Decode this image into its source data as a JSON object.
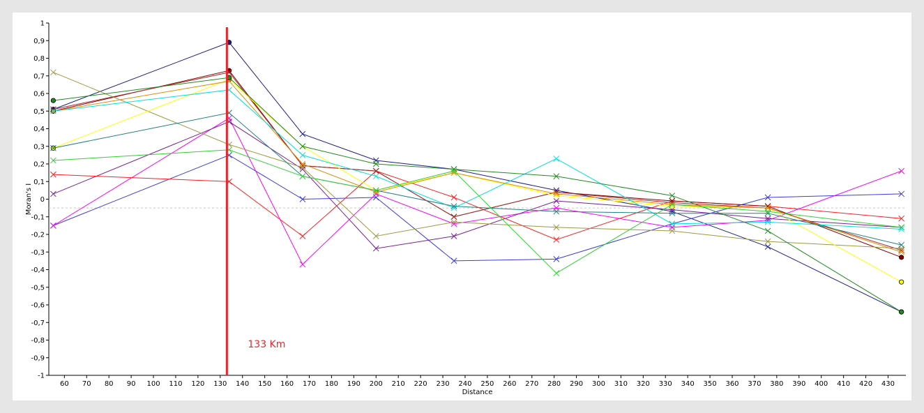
{
  "chart_data": {
    "type": "line",
    "xlabel": "Distance",
    "ylabel": "Moran's I",
    "xlim": [
      53,
      438
    ],
    "ylim": [
      -1,
      1
    ],
    "x_ticks": [
      60,
      70,
      80,
      90,
      100,
      110,
      120,
      130,
      140,
      150,
      160,
      170,
      180,
      190,
      200,
      210,
      220,
      230,
      240,
      250,
      260,
      270,
      280,
      290,
      300,
      310,
      320,
      330,
      340,
      350,
      360,
      370,
      380,
      390,
      400,
      410,
      420,
      430
    ],
    "y_ticks": [
      -1,
      -0.9,
      -0.8,
      -0.7,
      -0.6,
      -0.5,
      -0.4,
      -0.3,
      -0.2,
      -0.1,
      0,
      0.1,
      0.2,
      0.3,
      0.4,
      0.5,
      0.6,
      0.7,
      0.8,
      0.9,
      1
    ],
    "y_tick_labels": [
      "-1",
      "-0,9",
      "-0,8",
      "-0,7",
      "-0,6",
      "-0,5",
      "-0,4",
      "-0,3",
      "-0,2",
      "-0,1",
      "0",
      "0,1",
      "0,2",
      "0,3",
      "0,4",
      "0,5",
      "0,6",
      "0,7",
      "0,8",
      "0,9",
      "1"
    ],
    "expected_value_line": -0.05,
    "grid": false,
    "x": [
      55,
      134,
      167,
      200,
      235,
      281,
      333,
      376,
      436
    ],
    "series": [
      {
        "color": "#1e1e8c",
        "values": [
          0.51,
          0.89,
          0.37,
          0.22,
          0.17,
          0.05,
          -0.07,
          -0.27,
          -0.64
        ]
      },
      {
        "color": "#3c3cdc",
        "values": [
          -0.15,
          0.25,
          0.0,
          0.01,
          -0.35,
          -0.34,
          -0.14,
          0.01,
          0.03
        ]
      },
      {
        "color": "#ff00ff",
        "values": [
          -0.15,
          0.46,
          -0.37,
          0.03,
          -0.14,
          -0.05,
          -0.16,
          -0.12,
          0.16
        ]
      },
      {
        "color": "#781e96",
        "values": [
          0.03,
          0.44,
          0.17,
          -0.28,
          -0.21,
          -0.01,
          -0.06,
          -0.11,
          -0.16
        ]
      },
      {
        "color": "#ff2020",
        "values": [
          0.14,
          0.1,
          -0.21,
          0.16,
          0.01,
          -0.23,
          -0.01,
          -0.04,
          -0.11
        ]
      },
      {
        "color": "#8b0000",
        "values": [
          0.5,
          0.73,
          0.19,
          0.16,
          -0.1,
          0.04,
          -0.01,
          -0.04,
          -0.33
        ]
      },
      {
        "color": "#a52a2a",
        "values": [
          0.51,
          0.72,
          0.19,
          0.16,
          -0.1,
          0.04,
          -0.02,
          -0.05,
          -0.29
        ]
      },
      {
        "color": "#9a9a40",
        "values": [
          0.72,
          0.31,
          0.18,
          -0.21,
          -0.13,
          -0.16,
          -0.18,
          -0.24,
          -0.28
        ]
      },
      {
        "color": "#ffff00",
        "values": [
          0.29,
          0.68,
          0.3,
          0.05,
          0.15,
          0.02,
          -0.04,
          -0.05,
          -0.47
        ]
      },
      {
        "color": "#e68a00",
        "values": [
          0.5,
          0.67,
          0.2,
          0.04,
          0.15,
          0.03,
          -0.03,
          -0.05,
          -0.3
        ]
      },
      {
        "color": "#00e0e0",
        "values": [
          0.5,
          0.62,
          0.25,
          0.13,
          -0.05,
          0.23,
          -0.14,
          -0.13,
          -0.17
        ]
      },
      {
        "color": "#208080",
        "values": [
          0.29,
          0.49,
          0.13,
          0.05,
          -0.04,
          -0.07,
          -0.08,
          -0.08,
          -0.26
        ]
      },
      {
        "color": "#1e8c1e",
        "values": [
          0.56,
          0.69,
          0.3,
          0.2,
          0.17,
          0.13,
          0.02,
          -0.18,
          -0.64
        ]
      },
      {
        "color": "#30d030",
        "values": [
          0.22,
          0.28,
          0.13,
          0.05,
          0.16,
          -0.42,
          -0.03,
          -0.07,
          -0.16
        ]
      }
    ],
    "annotations": [
      {
        "text": "133 Km",
        "x": 133,
        "color": "#e8262b"
      }
    ]
  }
}
